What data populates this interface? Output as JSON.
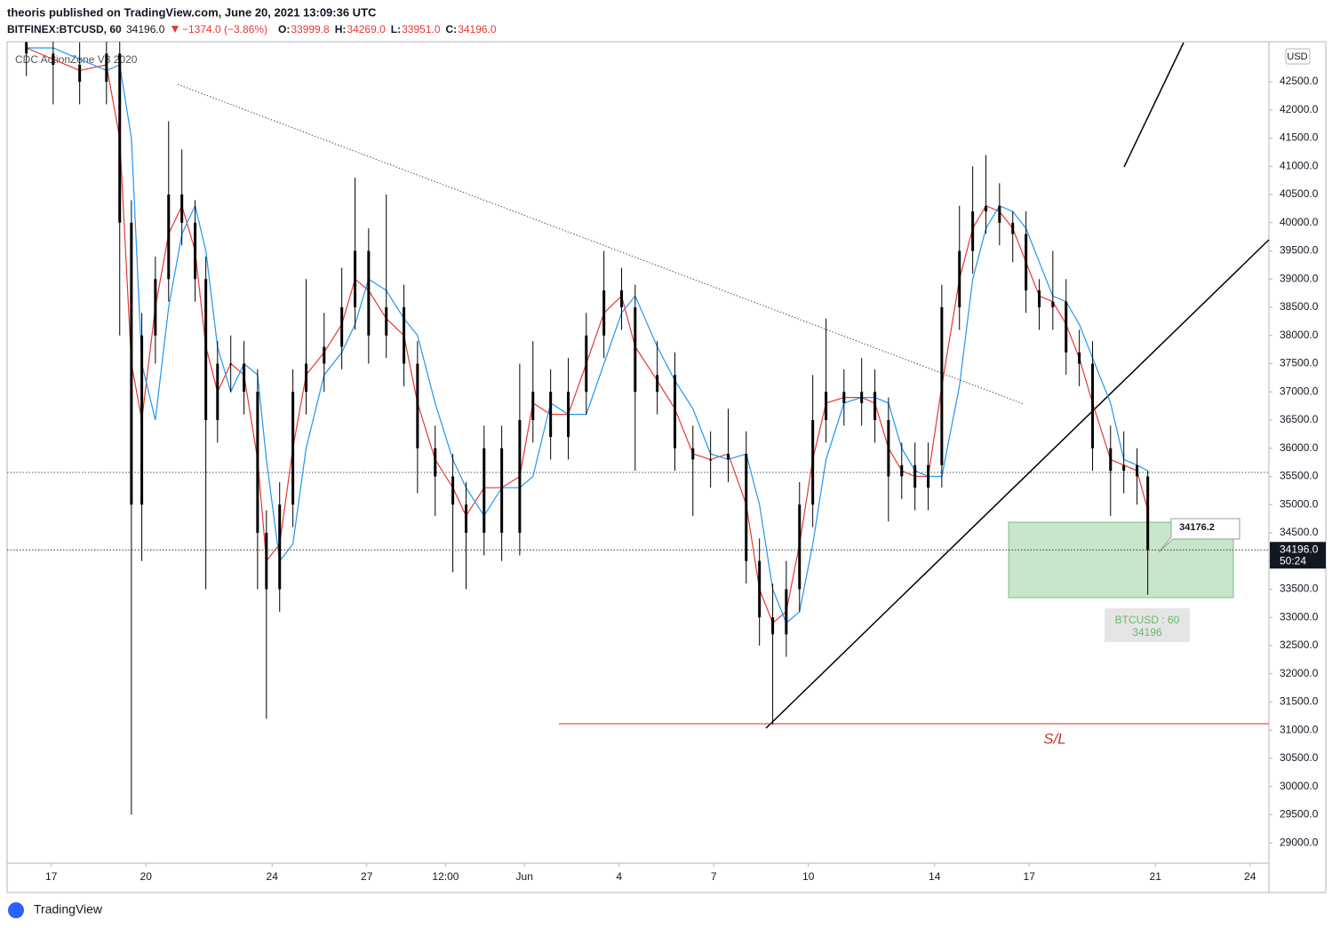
{
  "header": {
    "publisher": "theoris published on TradingView.com, June 20, 2021 13:09:36 UTC",
    "symbol": "BITFINEX:BTCUSD, 60",
    "last": "34196.0",
    "change": "−1374.0 (−3.86%)",
    "ohlc": [
      {
        "label": "O:",
        "value": "33999.8"
      },
      {
        "label": "H:",
        "value": "34269.0"
      },
      {
        "label": "L:",
        "value": "33951.0"
      },
      {
        "label": "C:",
        "value": "34196.0"
      }
    ]
  },
  "indicator": "CDC ActionZone V3 2020",
  "currency": "USD",
  "countdown": "50:24",
  "callout": "34176.2",
  "symbol_tag": {
    "name": "BTCUSD : 60",
    "price": "34196"
  },
  "stop_label": "S/L",
  "footer": "TradingView",
  "chart_data": {
    "type": "candlestick",
    "color": "#000000",
    "x": [
      -0.79,
      0.06,
      0.9,
      1.75,
      2.17,
      2.54,
      2.87,
      3.3,
      3.72,
      4.14,
      4.56,
      4.9,
      5.27,
      5.69,
      6.11,
      6.54,
      6.82,
      7.24,
      7.66,
      8.08,
      8.65,
      9.21,
      9.63,
      10.06,
      10.62,
      11.18,
      11.61,
      12.17,
      12.73,
      13.15,
      13.72,
      14.28,
      14.85,
      15.27,
      15.83,
      16.39,
      16.96,
      17.52,
      18.08,
      18.51,
      19.21,
      19.77,
      20.34,
      20.9,
      21.46,
      22.03,
      22.45,
      22.87,
      23.3,
      23.72,
      24.14,
      24.56,
      25.13,
      25.69,
      26.11,
      26.54,
      26.96,
      27.38,
      27.8,
      28.23,
      28.79,
      29.21,
      29.63,
      30.06,
      30.48,
      30.9,
      31.32,
      31.75,
      32.17,
      32.59,
      33.01,
      33.58,
      34.0,
      34.42,
      34.76
    ],
    "open": [
      43200,
      43000,
      42800,
      42500,
      43000,
      40000,
      35000,
      38000,
      39000,
      40500,
      40000,
      39000,
      36500,
      37500,
      37500,
      37000,
      34500,
      33500,
      35000,
      37000,
      37500,
      37800,
      38500,
      39500,
      38000,
      38500,
      37500,
      36000,
      35500,
      35000,
      34500,
      36000,
      34500,
      36500,
      37000,
      36200,
      37000,
      38000,
      38800,
      38500,
      37000,
      37300,
      36000,
      35800,
      35800,
      35900,
      34000,
      33000,
      32700,
      33500,
      35000,
      36500,
      37000,
      36800,
      37000,
      36500,
      35500,
      35700,
      35300,
      35700,
      38500,
      39500,
      40200,
      40300,
      40000,
      39800,
      38800,
      38500,
      38600,
      37700,
      37500,
      36000,
      35600,
      35700,
      35500
    ],
    "high": [
      43600,
      43400,
      43200,
      43400,
      43400,
      40400,
      38400,
      39400,
      41800,
      41300,
      40400,
      39400,
      37900,
      38000,
      37900,
      37400,
      34900,
      35400,
      37400,
      39000,
      38400,
      39200,
      40800,
      39900,
      40500,
      38900,
      37900,
      36400,
      35900,
      35400,
      36400,
      36400,
      37500,
      37900,
      37400,
      37600,
      38400,
      39500,
      39200,
      38900,
      37900,
      37700,
      36400,
      36300,
      36700,
      36300,
      34400,
      33600,
      34000,
      35400,
      37300,
      38300,
      37400,
      37600,
      37400,
      36900,
      36100,
      36100,
      36100,
      38900,
      40300,
      41000,
      41200,
      40700,
      40200,
      40200,
      39000,
      39500,
      39000,
      38100,
      37900,
      36400,
      36300,
      36000,
      35600
    ],
    "low": [
      42600,
      42100,
      42100,
      42100,
      38000,
      29500,
      34000,
      37500,
      38600,
      39600,
      38600,
      33500,
      36100,
      37000,
      36600,
      33500,
      31200,
      33100,
      34600,
      36600,
      37000,
      37400,
      38100,
      37500,
      37600,
      37100,
      35200,
      34800,
      33800,
      33500,
      34100,
      34000,
      34100,
      36100,
      35800,
      35800,
      36600,
      37600,
      38100,
      35600,
      36600,
      35600,
      34800,
      35300,
      35400,
      33600,
      32500,
      31100,
      32300,
      33100,
      34600,
      36100,
      36400,
      36400,
      36100,
      34700,
      35100,
      34900,
      34900,
      35300,
      38100,
      39100,
      39800,
      39600,
      39300,
      38400,
      38100,
      38100,
      37300,
      37100,
      35600,
      34800,
      35200,
      35000,
      33400
    ],
    "close": [
      43000,
      42800,
      42500,
      43000,
      40000,
      35000,
      38000,
      39000,
      40500,
      40000,
      39000,
      36500,
      37500,
      37500,
      37000,
      34500,
      33500,
      35000,
      37000,
      37500,
      37800,
      38500,
      39500,
      38000,
      38500,
      37500,
      36000,
      35500,
      35000,
      34500,
      36000,
      34500,
      36500,
      37000,
      36200,
      37000,
      38000,
      38800,
      38500,
      37000,
      37300,
      36000,
      35800,
      35800,
      35900,
      34000,
      33000,
      32700,
      33500,
      35000,
      36500,
      37000,
      36800,
      37000,
      36500,
      35500,
      35700,
      35300,
      35700,
      38500,
      39500,
      40200,
      40300,
      40000,
      39800,
      38800,
      38500,
      38600,
      37700,
      37500,
      36000,
      35600,
      35700,
      35500,
      34196
    ],
    "series": [
      {
        "color": "#e53935",
        "values": [
          43100,
          42900,
          42700,
          42800,
          41500,
          37500,
          36500,
          38500,
          39800,
          40300,
          39500,
          37800,
          37000,
          37500,
          37300,
          35800,
          34000,
          34300,
          36000,
          37300,
          37700,
          38200,
          39000,
          38800,
          38300,
          38000,
          36800,
          35800,
          35300,
          34800,
          35300,
          35300,
          35500,
          36800,
          36600,
          36600,
          37500,
          38400,
          38700,
          37800,
          37200,
          36700,
          35900,
          35800,
          35900,
          35000,
          33500,
          32900,
          33100,
          34300,
          35800,
          36800,
          36900,
          36900,
          36800,
          36000,
          35600,
          35500,
          35500,
          37100,
          39000,
          39900,
          40300,
          40200,
          39900,
          39300,
          38700,
          38600,
          38200,
          37600,
          36800,
          35800,
          35700,
          35600,
          34900
        ]
      },
      {
        "color": "#2196f3",
        "values": [
          43100,
          43100,
          42900,
          42700,
          42800,
          41500,
          37500,
          36500,
          38500,
          39800,
          40300,
          39500,
          37800,
          37000,
          37500,
          37300,
          35800,
          34000,
          34300,
          36000,
          37300,
          37700,
          38200,
          39000,
          38800,
          38300,
          38000,
          36800,
          35800,
          35300,
          34800,
          35300,
          35300,
          35500,
          36800,
          36600,
          36600,
          37500,
          38400,
          38700,
          37800,
          37200,
          36700,
          35900,
          35800,
          35900,
          35000,
          33500,
          32900,
          33100,
          34300,
          35800,
          36800,
          36900,
          36900,
          36800,
          36000,
          35600,
          35500,
          35500,
          37100,
          39000,
          39900,
          40300,
          40200,
          39900,
          39300,
          38700,
          38600,
          38200,
          37600,
          36800,
          35800,
          35700,
          35600
        ]
      }
    ],
    "xlim": [
      -1.4,
      38.6
    ],
    "xticks": [
      {
        "value": 0,
        "label": "17"
      },
      {
        "value": 3,
        "label": "20"
      },
      {
        "value": 7,
        "label": "24"
      },
      {
        "value": 10,
        "label": "27"
      },
      {
        "value": 12.5,
        "label": "12:00"
      },
      {
        "value": 15,
        "label": "Jun"
      },
      {
        "value": 18,
        "label": "4"
      },
      {
        "value": 21,
        "label": "7"
      },
      {
        "value": 24,
        "label": "10"
      },
      {
        "value": 28,
        "label": "14"
      },
      {
        "value": 31,
        "label": "17"
      },
      {
        "value": 35,
        "label": "21"
      },
      {
        "value": 38,
        "label": "24"
      }
    ],
    "ylim": [
      28640,
      43210
    ],
    "yticks": [
      {
        "value": 29000,
        "label": "29000.0"
      },
      {
        "value": 29500,
        "label": "29500.0"
      },
      {
        "value": 30000,
        "label": "30000.0"
      },
      {
        "value": 30500,
        "label": "30500.0"
      },
      {
        "value": 31000,
        "label": "31000.0"
      },
      {
        "value": 31500,
        "label": "31500.0"
      },
      {
        "value": 32000,
        "label": "32000.0"
      },
      {
        "value": 32500,
        "label": "32500.0"
      },
      {
        "value": 33000,
        "label": "33000.0"
      },
      {
        "value": 33500,
        "label": "33500.0"
      },
      {
        "value": 34000,
        "label": "34000.0"
      },
      {
        "value": 34500,
        "label": "34500.0"
      },
      {
        "value": 35000,
        "label": "35000.0"
      },
      {
        "value": 35500,
        "label": "35500.0"
      },
      {
        "value": 36000,
        "label": "36000.0"
      },
      {
        "value": 36500,
        "label": "36500.0"
      },
      {
        "value": 37000,
        "label": "37000.0"
      },
      {
        "value": 37500,
        "label": "37500.0"
      },
      {
        "value": 38000,
        "label": "38000.0"
      },
      {
        "value": 38500,
        "label": "38500.0"
      },
      {
        "value": 39000,
        "label": "39000.0"
      },
      {
        "value": 39500,
        "label": "39500.0"
      },
      {
        "value": 40000,
        "label": "40000.0"
      },
      {
        "value": 40500,
        "label": "40500.0"
      },
      {
        "value": 41000,
        "label": "41000.0"
      },
      {
        "value": 41500,
        "label": "41500.0"
      },
      {
        "value": 42000,
        "label": "42000.0"
      },
      {
        "value": 42500,
        "label": "42500.0"
      }
    ],
    "grid": false
  }
}
